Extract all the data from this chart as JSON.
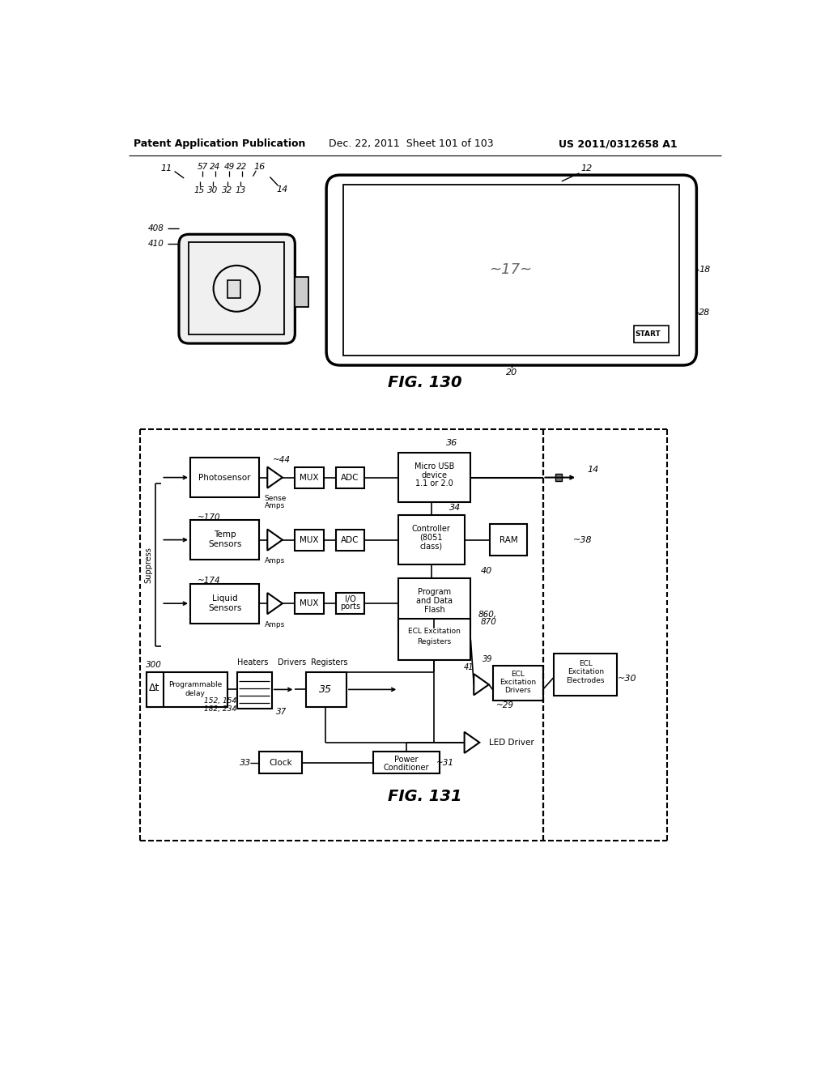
{
  "header_left": "Patent Application Publication",
  "header_mid": "Dec. 22, 2011  Sheet 101 of 103",
  "header_right": "US 2011/0312658 A1",
  "fig130_label": "FIG. 130",
  "fig131_label": "FIG. 131",
  "bg_color": "#ffffff",
  "line_color": "#000000"
}
